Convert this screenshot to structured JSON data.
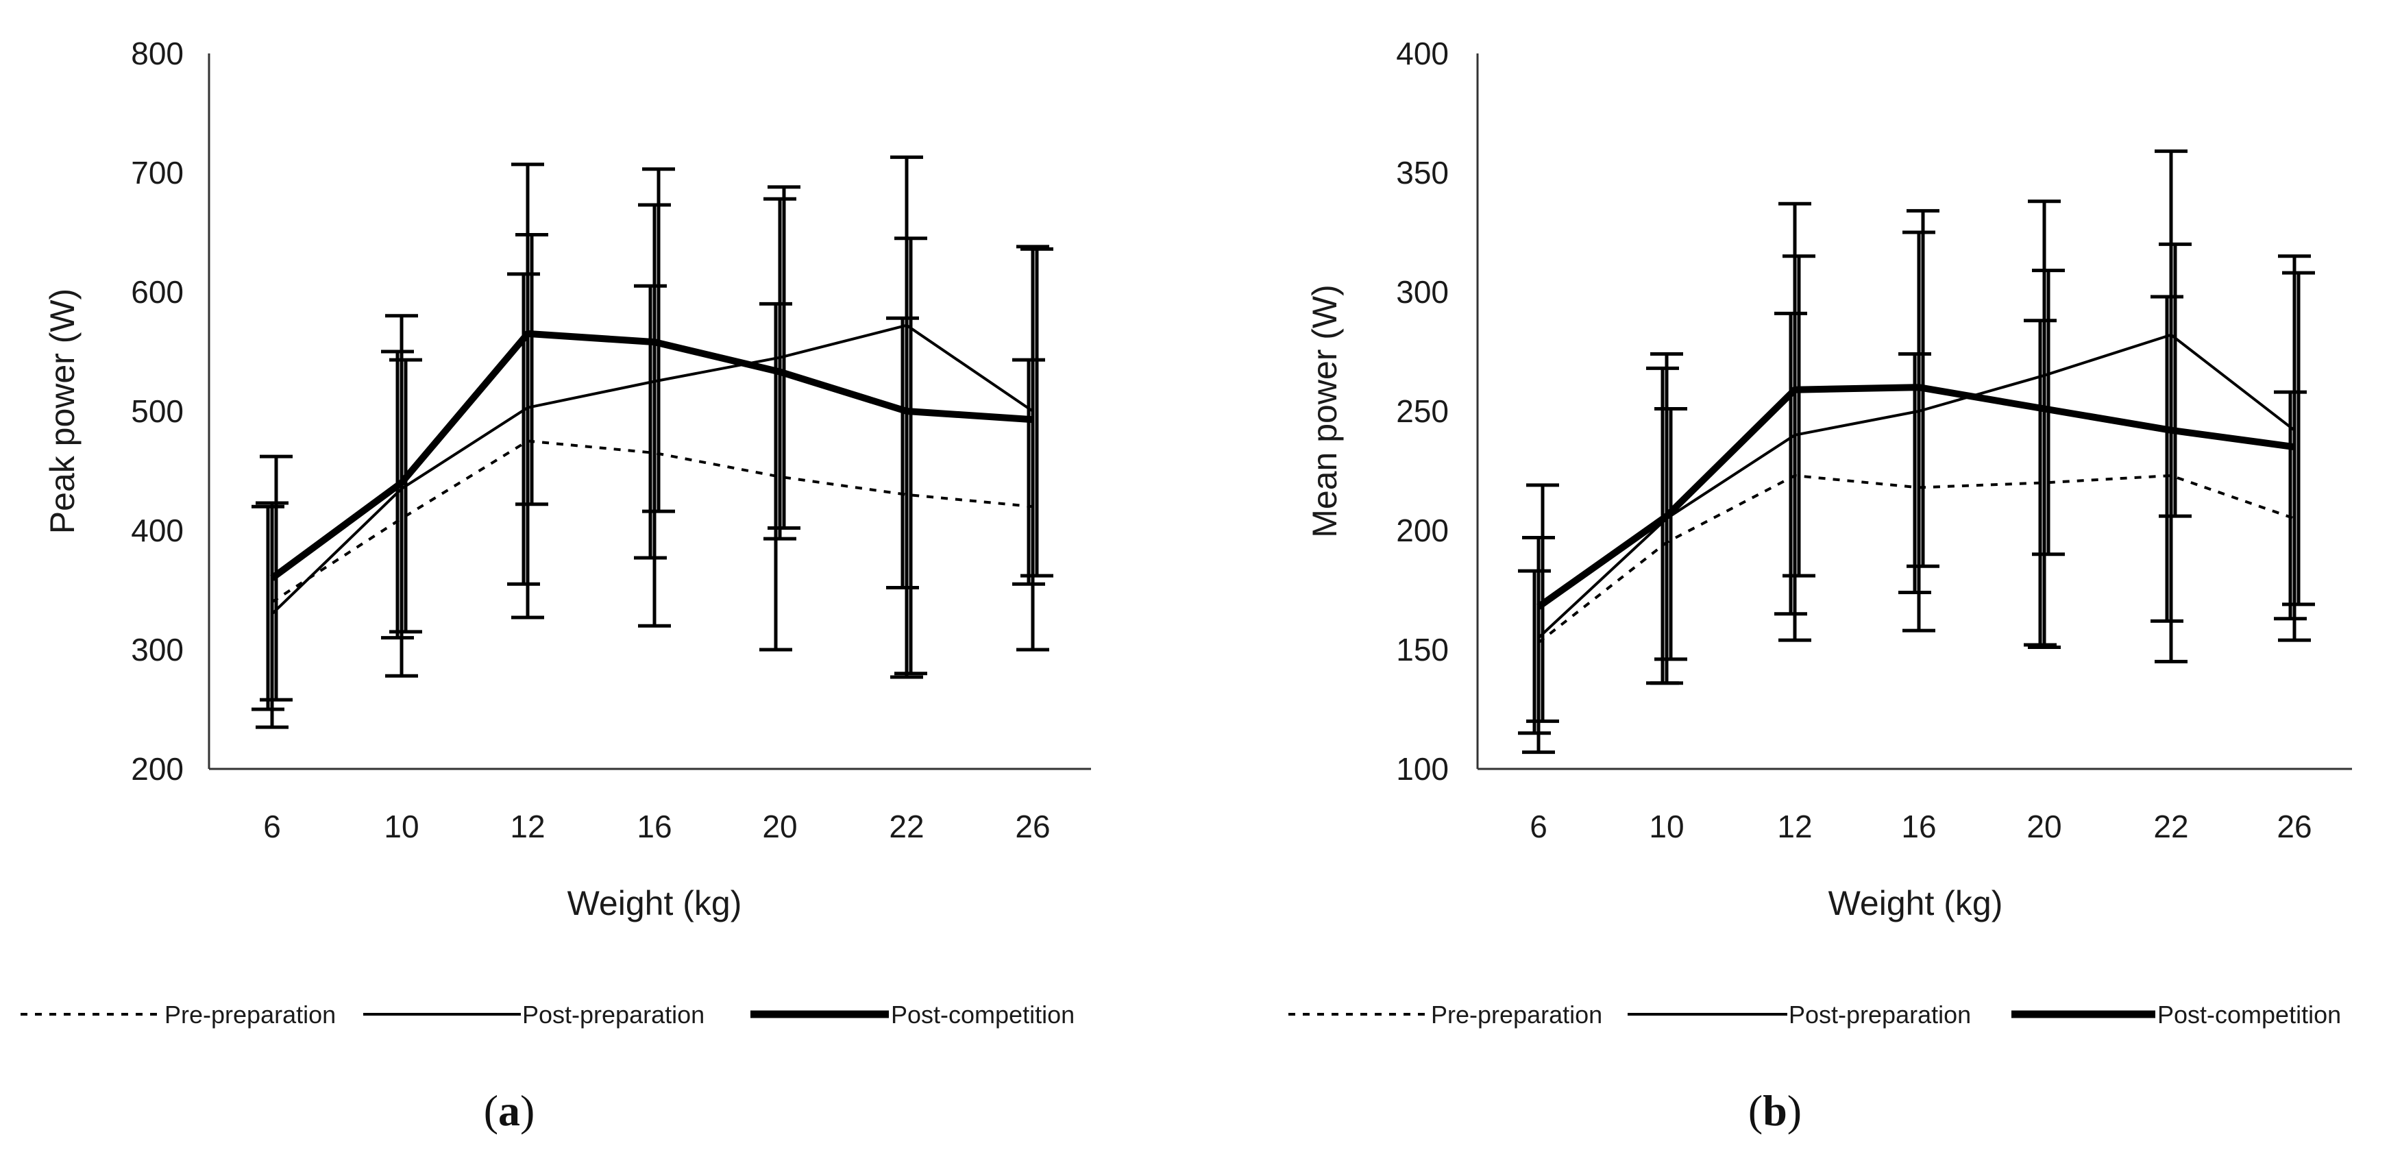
{
  "chart_data": [
    {
      "type": "line",
      "panel_label": "a",
      "title": "",
      "xlabel": "Weight (kg)",
      "ylabel": "Peak power (W)",
      "categories": [
        "6",
        "10",
        "12",
        "16",
        "20",
        "22",
        "26"
      ],
      "ylim": [
        200,
        800
      ],
      "yticks": [
        "200",
        "300",
        "400",
        "500",
        "600",
        "700",
        "800"
      ],
      "grid": false,
      "legend_position": "bottom",
      "series": [
        {
          "name": "Pre-preparation",
          "style": "dotted",
          "values": [
            340,
            410,
            475,
            465,
            445,
            430,
            420
          ],
          "err_low": [
            250,
            310,
            355,
            377,
            300,
            352,
            355
          ],
          "err_high": [
            420,
            550,
            615,
            605,
            590,
            578,
            543
          ]
        },
        {
          "name": "Post-preparation",
          "style": "thin",
          "values": [
            330,
            435,
            503,
            525,
            545,
            572,
            500
          ],
          "err_low": [
            235,
            278,
            327,
            320,
            393,
            277,
            300
          ],
          "err_high": [
            423,
            580,
            707,
            673,
            678,
            713,
            638
          ]
        },
        {
          "name": "Post-competition",
          "style": "thick",
          "values": [
            360,
            440,
            565,
            558,
            533,
            500,
            493
          ],
          "err_low": [
            258,
            315,
            422,
            416,
            402,
            280,
            362
          ],
          "err_high": [
            462,
            543,
            648,
            703,
            688,
            645,
            636
          ]
        }
      ]
    },
    {
      "type": "line",
      "panel_label": "b",
      "title": "",
      "xlabel": "Weight (kg)",
      "ylabel": "Mean power (W)",
      "categories": [
        "6",
        "10",
        "12",
        "16",
        "20",
        "22",
        "26"
      ],
      "ylim": [
        100,
        400
      ],
      "yticks": [
        "100",
        "150",
        "200",
        "250",
        "300",
        "350",
        "400"
      ],
      "grid": false,
      "legend_position": "bottom",
      "series": [
        {
          "name": "Pre-preparation",
          "style": "dotted",
          "values": [
            153,
            195,
            223,
            218,
            220,
            223,
            205
          ],
          "err_low": [
            115,
            136,
            165,
            174,
            152,
            162,
            163
          ],
          "err_high": [
            183,
            268,
            291,
            274,
            288,
            298,
            258
          ]
        },
        {
          "name": "Post-preparation",
          "style": "thin",
          "values": [
            155,
            205,
            240,
            250,
            265,
            282,
            242
          ],
          "err_low": [
            107,
            136,
            154,
            158,
            151,
            145,
            154
          ],
          "err_high": [
            197,
            274,
            337,
            325,
            338,
            359,
            315
          ]
        },
        {
          "name": "Post-competition",
          "style": "thick",
          "values": [
            168,
            206,
            259,
            260,
            251,
            242,
            235
          ],
          "err_low": [
            120,
            146,
            181,
            185,
            190,
            206,
            169
          ],
          "err_high": [
            219,
            251,
            315,
            334,
            309,
            320,
            308
          ]
        }
      ]
    }
  ]
}
